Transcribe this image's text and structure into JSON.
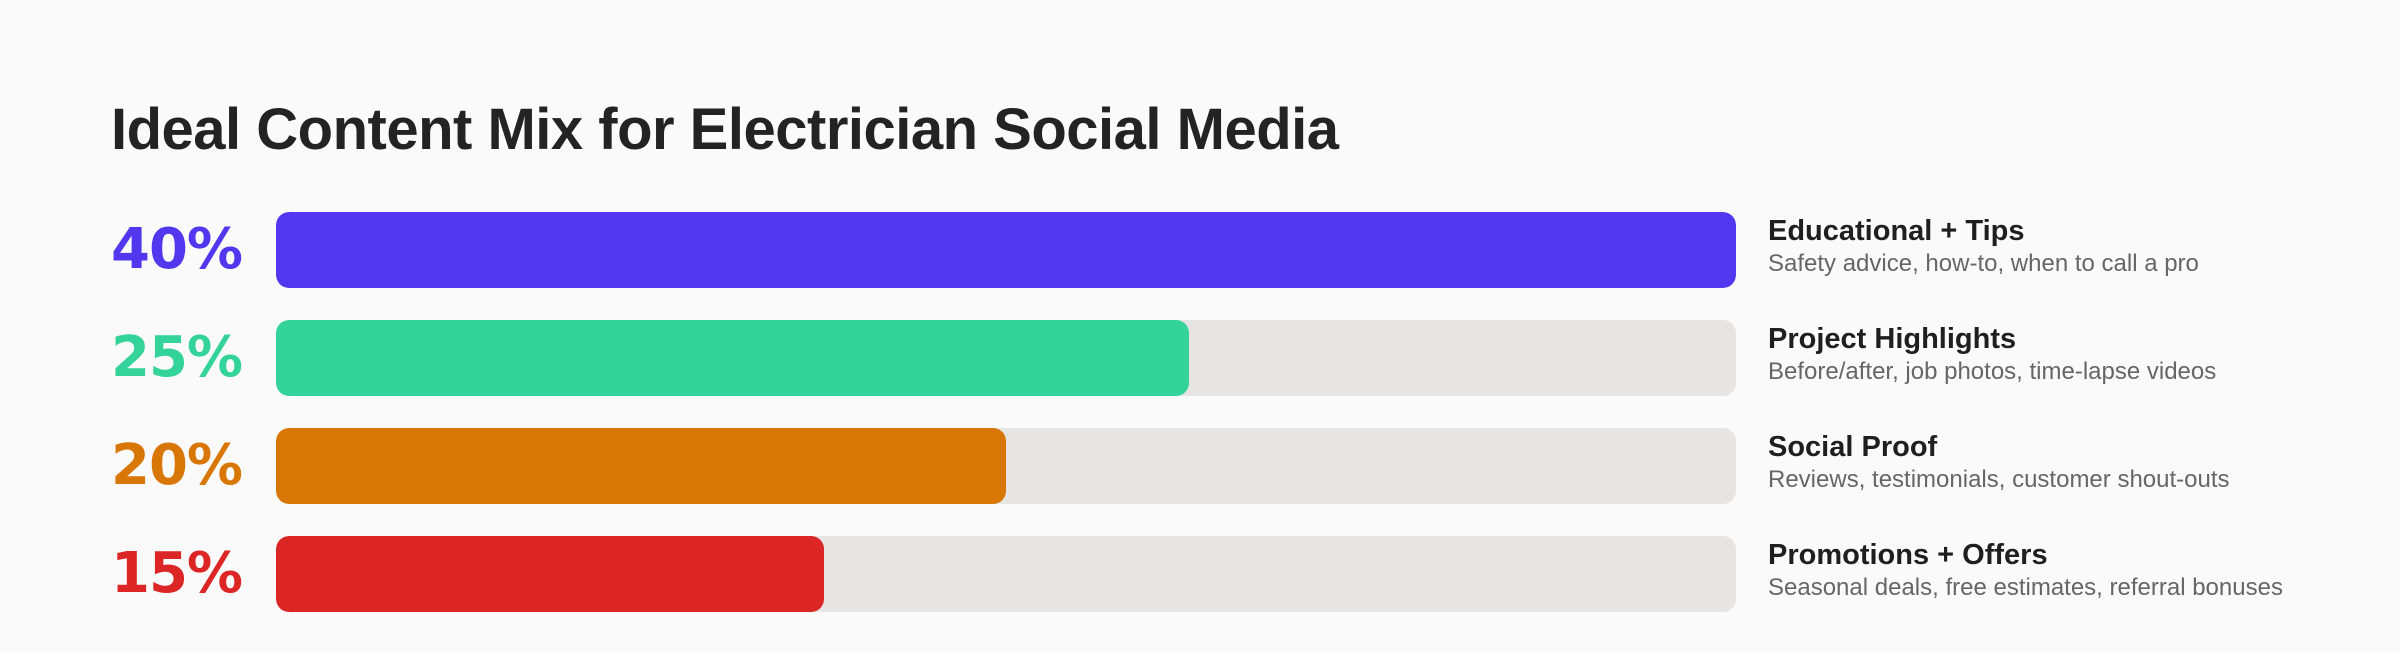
{
  "chart_data": {
    "type": "bar",
    "orientation": "horizontal",
    "title": "Ideal Content Mix for Electrician Social Media",
    "unit": "%",
    "xlim": [
      0,
      40
    ],
    "grid": false,
    "categories": [
      {
        "percent_label": "40%",
        "value": 40,
        "name": "Educational + Tips",
        "description": "Safety advice, how-to, when to call a pro",
        "color": "#5138ee"
      },
      {
        "percent_label": "25%",
        "value": 25,
        "name": "Project Highlights",
        "description": "Before/after, job photos, time-lapse videos",
        "color": "#34d399"
      },
      {
        "percent_label": "20%",
        "value": 20,
        "name": "Social Proof",
        "description": "Reviews, testimonials, customer shout-outs",
        "color": "#d97706"
      },
      {
        "percent_label": "15%",
        "value": 15,
        "name": "Promotions + Offers",
        "description": "Seasonal deals, free estimates, referral bonuses",
        "color": "#dc2626"
      }
    ],
    "track_color": "#e6e5e3"
  }
}
